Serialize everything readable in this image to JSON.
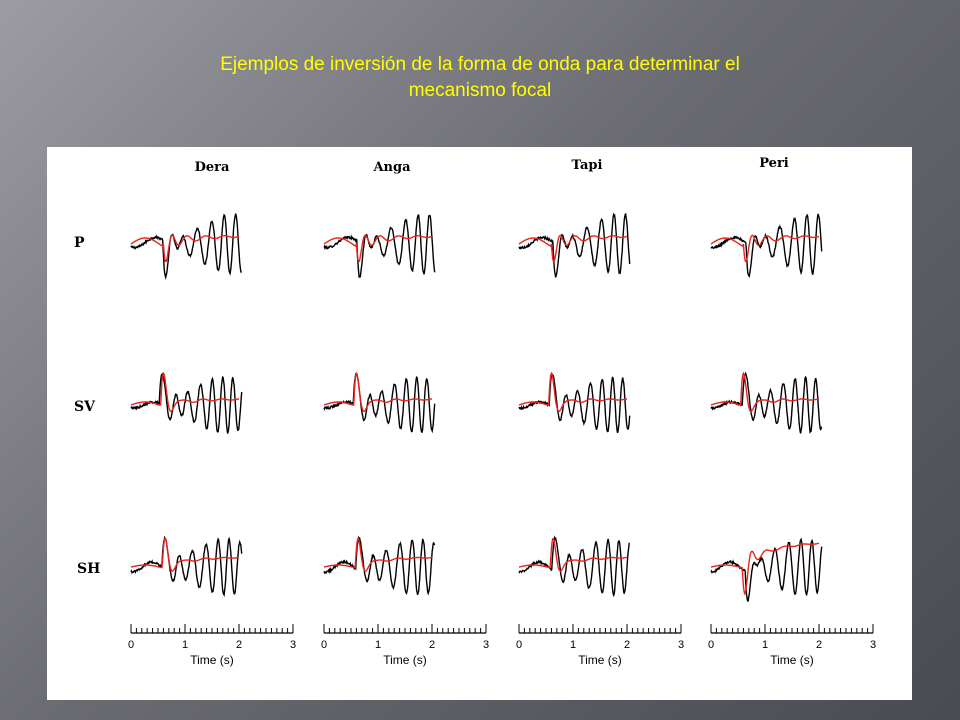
{
  "slide": {
    "title_line1": "Ejemplos de inversión de la forma de onda para determinar el",
    "title_line2": "mecanismo focal"
  },
  "figure": {
    "stations": [
      "Dera",
      "Anga",
      "Tapi",
      "Peri"
    ],
    "components": [
      "P",
      "SV",
      "SH"
    ],
    "x_axis": {
      "label": "Time (s)",
      "ticks": [
        "0",
        "1",
        "2",
        "3"
      ],
      "range": [
        0,
        3
      ]
    },
    "colors": {
      "observed": "#000000",
      "synthetic": "#e8231e"
    }
  }
}
